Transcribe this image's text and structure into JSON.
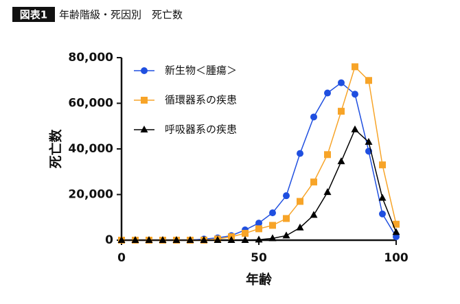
{
  "header": {
    "badge": "図表1",
    "title": "年齢階級・死因別　死亡数"
  },
  "chart_data": {
    "type": "line",
    "xlabel": "年齢",
    "ylabel": "死亡数",
    "x": [
      0,
      5,
      10,
      15,
      20,
      25,
      30,
      35,
      40,
      45,
      50,
      55,
      60,
      65,
      70,
      75,
      80,
      85,
      90,
      95,
      100
    ],
    "xlim": [
      0,
      100
    ],
    "xticks": [
      0,
      50,
      100
    ],
    "ylim": [
      0,
      80000
    ],
    "yticks": [
      {
        "value": 0,
        "label": "0"
      },
      {
        "value": 20000,
        "label": "20,000"
      },
      {
        "value": 40000,
        "label": "40,000"
      },
      {
        "value": 60000,
        "label": "60,000"
      },
      {
        "value": 80000,
        "label": "80,000"
      }
    ],
    "legend": "upper left",
    "series": [
      {
        "name": "新生物＜腫瘍＞",
        "color": "#1f4fe0",
        "marker": "circle",
        "values": [
          0,
          0,
          0,
          0,
          0,
          0,
          500,
          1000,
          2000,
          4500,
          7500,
          12000,
          19500,
          38000,
          54000,
          64500,
          69000,
          64000,
          39000,
          11500,
          1500
        ]
      },
      {
        "name": "循環器系の疾患",
        "color": "#f7a428",
        "marker": "square",
        "values": [
          0,
          0,
          0,
          0,
          0,
          0,
          0,
          500,
          1500,
          3000,
          5000,
          6500,
          9500,
          17000,
          25500,
          37500,
          56500,
          76000,
          70000,
          33000,
          7000
        ]
      },
      {
        "name": "呼吸器系の疾患",
        "color": "#000000",
        "marker": "triangle",
        "values": [
          0,
          0,
          0,
          0,
          0,
          0,
          0,
          0,
          0,
          0,
          200,
          800,
          2000,
          5500,
          11000,
          21000,
          34500,
          48500,
          43000,
          18500,
          3500
        ]
      }
    ]
  }
}
